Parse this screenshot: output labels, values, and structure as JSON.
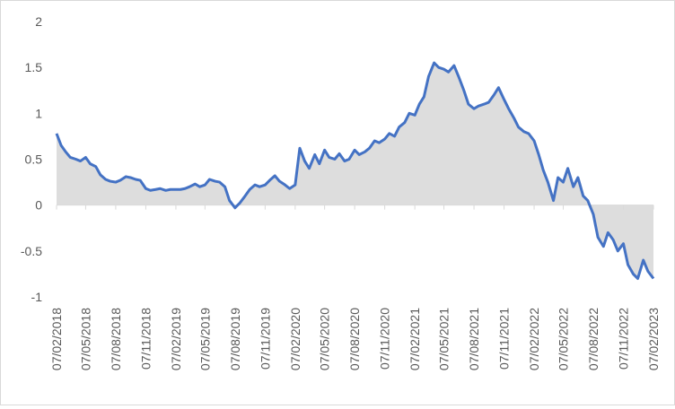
{
  "chart_data": {
    "type": "area",
    "title": "",
    "xlabel": "",
    "ylabel": "",
    "ylim": [
      -1,
      2
    ],
    "yticks": [
      -1,
      -0.5,
      0,
      0.5,
      1,
      1.5,
      2
    ],
    "ytick_labels": [
      "-1",
      "-0.5",
      "0",
      "0.5",
      "1",
      "1.5",
      "2"
    ],
    "xticks": [
      "07/02/2018",
      "07/05/2018",
      "07/08/2018",
      "07/11/2018",
      "07/02/2019",
      "07/05/2019",
      "07/08/2019",
      "07/11/2019",
      "07/02/2020",
      "07/05/2020",
      "07/08/2020",
      "07/11/2020",
      "07/02/2021",
      "07/05/2021",
      "07/08/2021",
      "07/11/2021",
      "07/02/2022",
      "07/05/2022",
      "07/08/2022",
      "07/11/2022",
      "07/02/2023"
    ],
    "grid": false,
    "legend": "none",
    "line_color": "#4472c4",
    "fill_color": "#d9d9d9",
    "series": [
      {
        "x": [
          "2018-02-07",
          "2018-02-21",
          "2018-03-07",
          "2018-03-21",
          "2018-04-07",
          "2018-04-21",
          "2018-05-07",
          "2018-05-21",
          "2018-06-07",
          "2018-06-21",
          "2018-07-07",
          "2018-07-21",
          "2018-08-07",
          "2018-08-21",
          "2018-09-07",
          "2018-09-21",
          "2018-10-07",
          "2018-10-21",
          "2018-11-07",
          "2018-11-21",
          "2018-12-07",
          "2018-12-21",
          "2019-01-07",
          "2019-01-21",
          "2019-02-07",
          "2019-02-21",
          "2019-03-07",
          "2019-03-21",
          "2019-04-07",
          "2019-04-21",
          "2019-05-07",
          "2019-05-21",
          "2019-06-07",
          "2019-06-21",
          "2019-07-07",
          "2019-07-21",
          "2019-08-07",
          "2019-08-21",
          "2019-09-07",
          "2019-09-21",
          "2019-10-07",
          "2019-10-21",
          "2019-11-07",
          "2019-11-21",
          "2019-12-07",
          "2019-12-21",
          "2020-01-07",
          "2020-01-21",
          "2020-02-07",
          "2020-02-21",
          "2020-03-07",
          "2020-03-21",
          "2020-04-07",
          "2020-04-21",
          "2020-05-07",
          "2020-05-21",
          "2020-06-07",
          "2020-06-21",
          "2020-07-07",
          "2020-07-21",
          "2020-08-07",
          "2020-08-21",
          "2020-09-07",
          "2020-09-21",
          "2020-10-07",
          "2020-10-21",
          "2020-11-07",
          "2020-11-21",
          "2020-12-07",
          "2020-12-21",
          "2021-01-07",
          "2021-01-21",
          "2021-02-07",
          "2021-02-21",
          "2021-03-07",
          "2021-03-21",
          "2021-04-07",
          "2021-04-21",
          "2021-05-07",
          "2021-05-21",
          "2021-06-07",
          "2021-06-21",
          "2021-07-07",
          "2021-07-21",
          "2021-08-07",
          "2021-08-21",
          "2021-09-07",
          "2021-09-21",
          "2021-10-07",
          "2021-10-21",
          "2021-11-07",
          "2021-11-21",
          "2021-12-07",
          "2021-12-21",
          "2022-01-07",
          "2022-01-21",
          "2022-02-07",
          "2022-02-21",
          "2022-03-07",
          "2022-03-21",
          "2022-04-07",
          "2022-04-21",
          "2022-05-07",
          "2022-05-21",
          "2022-06-07",
          "2022-06-21",
          "2022-07-07",
          "2022-07-21",
          "2022-08-07",
          "2022-08-21",
          "2022-09-07",
          "2022-09-21",
          "2022-10-07",
          "2022-10-21",
          "2022-11-07",
          "2022-11-21",
          "2022-12-07",
          "2022-12-21",
          "2023-01-07",
          "2023-01-21",
          "2023-02-07"
        ],
        "values": [
          0.78,
          0.65,
          0.58,
          0.52,
          0.5,
          0.48,
          0.52,
          0.45,
          0.42,
          0.33,
          0.28,
          0.26,
          0.25,
          0.27,
          0.31,
          0.3,
          0.28,
          0.27,
          0.18,
          0.16,
          0.17,
          0.18,
          0.16,
          0.17,
          0.17,
          0.17,
          0.18,
          0.2,
          0.23,
          0.2,
          0.22,
          0.28,
          0.26,
          0.25,
          0.2,
          0.05,
          -0.03,
          0.02,
          0.1,
          0.17,
          0.22,
          0.2,
          0.22,
          0.27,
          0.32,
          0.26,
          0.22,
          0.18,
          0.22,
          0.62,
          0.48,
          0.4,
          0.55,
          0.45,
          0.6,
          0.52,
          0.5,
          0.56,
          0.48,
          0.5,
          0.6,
          0.55,
          0.58,
          0.62,
          0.7,
          0.68,
          0.72,
          0.78,
          0.75,
          0.85,
          0.9,
          1.0,
          0.98,
          1.1,
          1.18,
          1.4,
          1.55,
          1.5,
          1.48,
          1.45,
          1.52,
          1.4,
          1.25,
          1.1,
          1.05,
          1.08,
          1.1,
          1.12,
          1.2,
          1.28,
          1.15,
          1.05,
          0.95,
          0.85,
          0.8,
          0.78,
          0.7,
          0.55,
          0.38,
          0.25,
          0.05,
          0.3,
          0.25,
          0.4,
          0.2,
          0.3,
          0.1,
          0.05,
          -0.1,
          -0.35,
          -0.45,
          -0.3,
          -0.38,
          -0.5,
          -0.42,
          -0.65,
          -0.75,
          -0.8,
          -0.6,
          -0.72,
          -0.8
        ]
      }
    ]
  }
}
